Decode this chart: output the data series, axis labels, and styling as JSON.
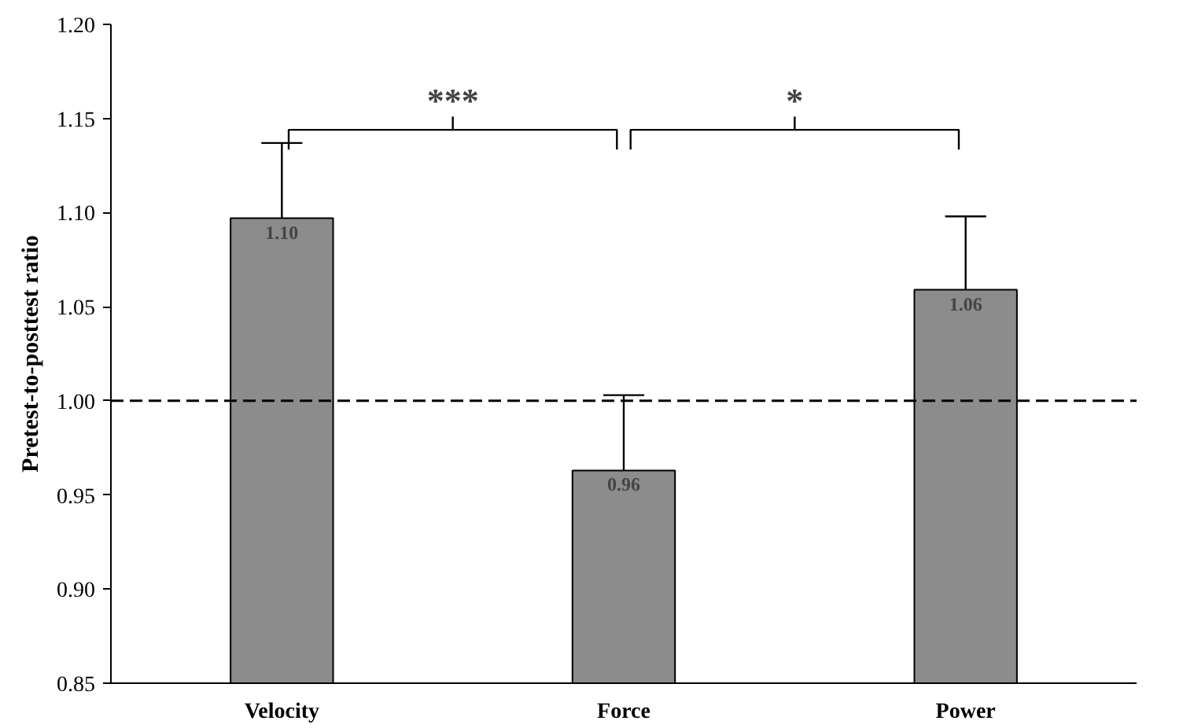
{
  "chart_data": {
    "type": "bar",
    "ylabel": "Pretest-to-posttest ratio",
    "categories": [
      "Velocity",
      "Force",
      "Power"
    ],
    "values": [
      1.097,
      0.963,
      1.059
    ],
    "value_labels": [
      "1.10",
      "0.96",
      "1.06"
    ],
    "errors": [
      [
        1.097,
        1.137
      ],
      [
        0.963,
        1.003
      ],
      [
        1.059,
        1.098
      ]
    ],
    "color": "#8c8c8c",
    "ylim": [
      0.85,
      1.2
    ],
    "yticks": [
      {
        "value": 0.85,
        "label": "0.85"
      },
      {
        "value": 0.9,
        "label": "0.90"
      },
      {
        "value": 0.95,
        "label": "0.95"
      },
      {
        "value": 1.0,
        "label": "1.00"
      },
      {
        "value": 1.05,
        "label": "1.05"
      },
      {
        "value": 1.1,
        "label": "1.10"
      },
      {
        "value": 1.15,
        "label": "1.15"
      },
      {
        "value": 1.2,
        "label": "1.20"
      }
    ],
    "ref_lines": [
      {
        "axis": "y",
        "value": 1.0,
        "line_style": "dashed",
        "color": "#000000"
      }
    ],
    "annotations": [
      "***",
      "*"
    ],
    "grid": false
  }
}
